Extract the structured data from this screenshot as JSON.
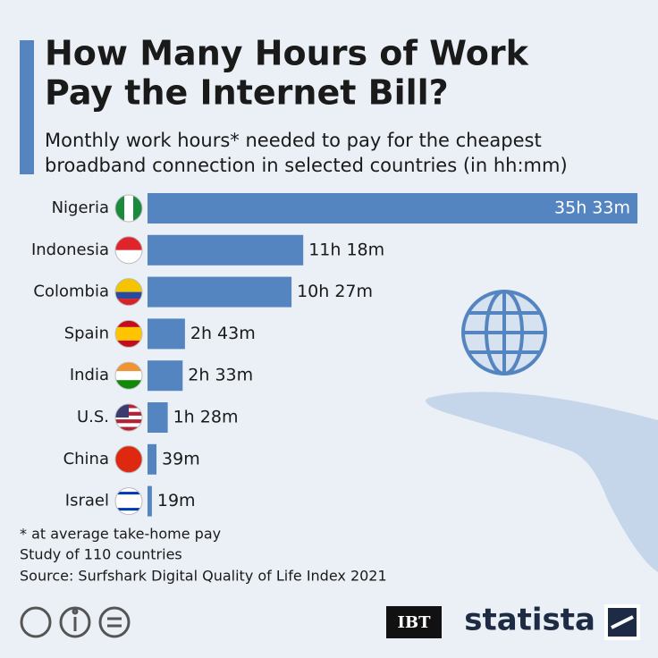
{
  "chart_data": {
    "type": "bar",
    "orientation": "horizontal",
    "title_lines": [
      "How Many Hours of Work",
      "Pay the Internet Bill?"
    ],
    "subtitle_lines": [
      "Monthly work hours* needed to pay for the cheapest",
      "broadband connection in selected countries (in hh:mm)"
    ],
    "categories": [
      "Nigeria",
      "Indonesia",
      "Colombia",
      "Spain",
      "India",
      "U.S.",
      "China",
      "Israel"
    ],
    "values": [
      2133,
      678,
      627,
      163,
      153,
      88,
      39,
      19
    ],
    "value_labels": [
      "35h 33m",
      "11h 18m",
      "10h 27m",
      "2h 43m",
      "2h 33m",
      "1h 28m",
      "39m",
      "19m"
    ],
    "color": "#5485c0",
    "notes": [
      "* at average take-home pay",
      "Study of 110 countries",
      "Source: Surfshark Digital Quality of Life Index 2021"
    ],
    "logos": [
      "IBT",
      "statista"
    ]
  }
}
